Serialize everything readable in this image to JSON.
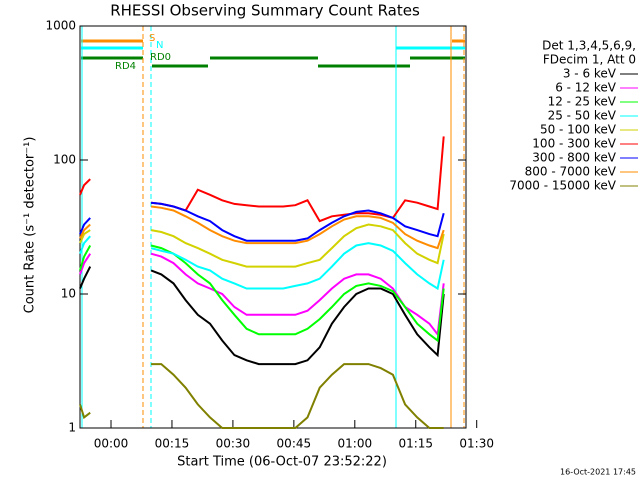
{
  "chart_data": {
    "type": "line",
    "title": "RHESSI Observing Summary Count Rates",
    "x_label": "Start Time (06-Oct-07 23:52:22)",
    "y_label": "Count Rate (s⁻¹ detector⁻¹)",
    "footer": "16-Oct-2021 17:45",
    "legend_header": [
      "Det 1,3,4,5,6,9,",
      "FDecim 1, Att 0"
    ],
    "annotations": [
      "S",
      "N",
      "RD0",
      "RD4"
    ],
    "y_log": true,
    "xlim": [
      0,
      95
    ],
    "ylim": [
      1,
      1000
    ],
    "yticks": [
      1,
      10,
      100,
      1000
    ],
    "xticks": [
      {
        "value": 7.633,
        "label": "00:00"
      },
      {
        "value": 22.633,
        "label": "00:15"
      },
      {
        "value": 37.633,
        "label": "00:30"
      },
      {
        "value": 52.633,
        "label": "00:45"
      },
      {
        "value": 67.633,
        "label": "01:00"
      },
      {
        "value": 82.633,
        "label": "01:15"
      },
      {
        "value": 97.633,
        "label": "01:30"
      }
    ],
    "x": [
      0,
      1,
      2.5,
      10,
      17.5,
      20,
      23,
      26,
      29,
      32,
      35,
      38,
      41,
      44,
      47,
      50,
      53,
      56,
      59,
      62,
      65,
      68,
      71,
      74,
      77,
      80,
      83,
      86,
      88,
      89.5
    ],
    "series": [
      {
        "name": "3 - 6 keV",
        "color": "#000000",
        "values": [
          11,
          13,
          16,
          null,
          15,
          14,
          12,
          9,
          7,
          6,
          4.5,
          3.5,
          3.2,
          3,
          3,
          3,
          3,
          3.2,
          4,
          6,
          8,
          10,
          11,
          11,
          10,
          7,
          5,
          4,
          3.5,
          10
        ]
      },
      {
        "name": "6 - 12 keV",
        "color": "#ff00ff",
        "values": [
          14,
          17,
          20,
          null,
          20,
          19,
          17,
          14,
          12,
          11,
          10,
          8,
          7,
          7,
          7,
          7,
          7,
          7.5,
          9,
          11,
          13,
          14,
          14,
          13,
          11,
          8,
          7,
          6,
          5,
          12
        ]
      },
      {
        "name": "12 - 25 keV",
        "color": "#00ff00",
        "values": [
          15,
          19,
          23,
          null,
          23,
          22,
          20,
          17,
          14,
          12,
          9,
          7,
          5.5,
          5,
          5,
          5,
          5,
          5.5,
          6.5,
          8,
          10,
          11.5,
          12,
          11.5,
          10.5,
          8,
          6,
          5,
          4.5,
          11
        ]
      },
      {
        "name": "25 - 50 keV",
        "color": "#00ffff",
        "values": [
          20,
          24,
          27,
          null,
          22,
          21,
          20,
          18,
          16,
          15,
          13,
          12,
          11,
          11,
          11,
          11,
          11.5,
          12,
          13,
          16,
          20,
          23,
          24,
          23,
          21,
          17,
          14,
          12,
          11,
          18
        ]
      },
      {
        "name": "50 - 100 keV",
        "color": "#d2d200",
        "values": [
          24,
          28,
          30,
          null,
          30,
          29,
          27,
          24,
          22,
          20,
          18,
          17,
          16,
          16,
          16,
          16,
          16,
          17,
          18,
          22,
          27,
          31,
          33,
          32,
          30,
          24,
          20,
          18,
          17,
          28
        ]
      },
      {
        "name": "100 - 300 keV",
        "color": "#ff0000",
        "values": [
          55,
          65,
          72,
          null,
          48,
          47,
          45,
          42,
          60,
          55,
          50,
          47,
          46,
          45,
          45,
          45,
          46,
          50,
          35,
          38,
          39,
          40,
          40,
          39,
          37,
          50,
          48,
          45,
          43,
          150
        ]
      },
      {
        "name": "300 - 800 keV",
        "color": "#0000ff",
        "values": [
          28,
          33,
          37,
          null,
          48,
          47,
          45,
          42,
          38,
          35,
          30,
          27,
          25,
          25,
          25,
          25,
          25,
          26,
          30,
          34,
          38,
          41,
          42,
          40,
          37,
          32,
          30,
          28,
          27,
          40
        ]
      },
      {
        "name": "800 - 7000 keV",
        "color": "#ff8c00",
        "values": [
          26,
          30,
          33,
          null,
          45,
          44,
          42,
          38,
          34,
          30,
          27,
          25,
          24,
          24,
          24,
          24,
          24,
          25,
          28,
          32,
          36,
          38,
          38,
          37,
          34,
          28,
          25,
          23,
          22,
          30
        ]
      },
      {
        "name": "7000 - 15000 keV",
        "color": "#808000",
        "values": [
          1.5,
          1.2,
          1.3,
          null,
          3,
          3,
          2.5,
          2,
          1.5,
          1.2,
          1,
          1,
          1,
          1,
          1,
          1,
          1,
          1.2,
          2,
          2.5,
          3,
          3,
          3,
          2.8,
          2.5,
          1.5,
          1.2,
          1,
          1,
          1
        ]
      }
    ]
  }
}
